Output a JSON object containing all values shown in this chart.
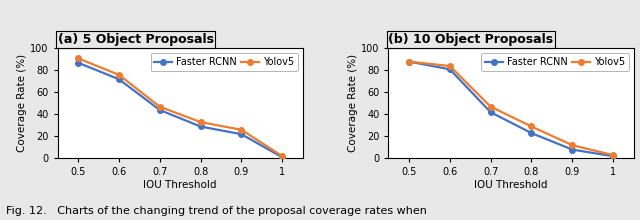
{
  "x": [
    0.5,
    0.6,
    0.7,
    0.8,
    0.9,
    1.0
  ],
  "panel_a": {
    "title": "(a) 5 Object Proposals",
    "faster_rcnn": [
      87,
      72,
      44,
      29,
      22,
      1
    ],
    "yolov5": [
      91,
      76,
      47,
      33,
      26,
      2
    ]
  },
  "panel_b": {
    "title": "(b) 10 Object Proposals",
    "faster_rcnn": [
      88,
      81,
      42,
      23,
      8,
      2
    ],
    "yolov5": [
      88,
      84,
      47,
      29,
      12,
      3
    ]
  },
  "xlabel": "IOU Threshold",
  "ylabel": "Coverage Rate (%)",
  "ylim": [
    0,
    100
  ],
  "yticks": [
    0,
    20,
    40,
    60,
    80,
    100
  ],
  "xticks": [
    0.5,
    0.6,
    0.7,
    0.8,
    0.9,
    1.0
  ],
  "xtick_labels": [
    "0.5",
    "0.6",
    "0.7",
    "0.8",
    "0.9",
    "1"
  ],
  "color_faster": "#4472C4",
  "color_yolov5": "#ED7D31",
  "caption": "Fig. 12.   Charts of the changing trend of the proposal coverage rates when",
  "bg_color": "#E8E8E8",
  "plot_bg_color": "#FFFFFF",
  "legend_labels": [
    "Faster RCNN",
    "Yolov5"
  ],
  "title_fontsize": 9,
  "axis_fontsize": 7.5,
  "tick_fontsize": 7,
  "legend_fontsize": 7,
  "caption_fontsize": 8,
  "linewidth": 1.6,
  "marker": "o",
  "markersize": 4
}
